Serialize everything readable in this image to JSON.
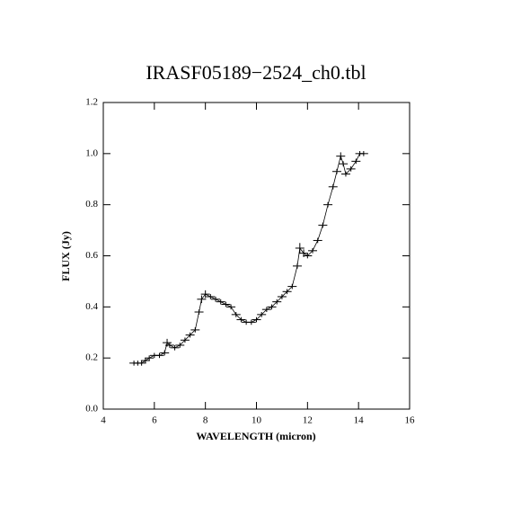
{
  "chart_data": {
    "type": "scatter",
    "title": "IRASF05189−2524_ch0.tbl",
    "x_label": "WAVELENGTH (micron)",
    "y_label": "FLUX (Jy)",
    "x": [
      5.2,
      5.35,
      5.5,
      5.65,
      5.8,
      6.0,
      6.2,
      6.4,
      6.5,
      6.6,
      6.8,
      7.0,
      7.2,
      7.4,
      7.6,
      7.75,
      7.85,
      8.0,
      8.2,
      8.4,
      8.6,
      8.8,
      9.0,
      9.2,
      9.4,
      9.6,
      9.8,
      10.0,
      10.2,
      10.4,
      10.6,
      10.8,
      11.0,
      11.2,
      11.4,
      11.6,
      11.7,
      11.85,
      12.0,
      12.2,
      12.4,
      12.6,
      12.8,
      13.0,
      13.15,
      13.3,
      13.4,
      13.5,
      13.7,
      13.9,
      14.05,
      14.2
    ],
    "values": [
      0.18,
      0.18,
      0.18,
      0.19,
      0.2,
      0.21,
      0.21,
      0.22,
      0.26,
      0.25,
      0.24,
      0.25,
      0.27,
      0.29,
      0.31,
      0.38,
      0.43,
      0.45,
      0.44,
      0.43,
      0.42,
      0.41,
      0.4,
      0.37,
      0.35,
      0.34,
      0.34,
      0.35,
      0.37,
      0.39,
      0.4,
      0.42,
      0.44,
      0.46,
      0.48,
      0.56,
      0.63,
      0.61,
      0.6,
      0.62,
      0.66,
      0.72,
      0.8,
      0.87,
      0.93,
      0.99,
      0.96,
      0.92,
      0.94,
      0.97,
      1.0,
      1.0
    ],
    "errors": [
      0.01,
      0.01,
      0.01,
      0.01,
      0.01,
      0.01,
      0.01,
      0.01,
      0.015,
      0.01,
      0.01,
      0.01,
      0.01,
      0.01,
      0.01,
      0.01,
      0.015,
      0.015,
      0.01,
      0.01,
      0.01,
      0.01,
      0.01,
      0.01,
      0.01,
      0.01,
      0.01,
      0.01,
      0.01,
      0.01,
      0.01,
      0.01,
      0.01,
      0.01,
      0.01,
      0.01,
      0.02,
      0.015,
      0.01,
      0.01,
      0.01,
      0.01,
      0.01,
      0.01,
      0.01,
      0.015,
      0.01,
      0.01,
      0.01,
      0.01,
      0.01,
      0.01
    ],
    "color": "#000000",
    "xlim": [
      4,
      16
    ],
    "xticks": [
      4,
      6,
      8,
      10,
      12,
      14,
      16
    ],
    "ylim": [
      0,
      1.2
    ],
    "yticks": [
      {
        "value": 0,
        "label": "0.0"
      },
      0.2,
      0.4,
      0.6,
      0.8,
      {
        "value": 1,
        "label": "1.0"
      },
      1.2
    ]
  }
}
